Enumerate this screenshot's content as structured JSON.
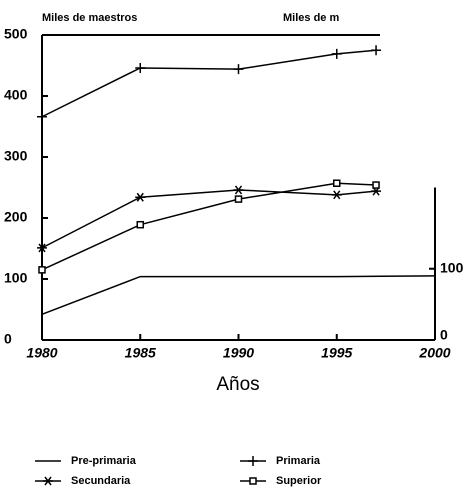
{
  "chart_data": {
    "type": "line",
    "title_left": "Miles de maestros",
    "title_right": "Miles de m",
    "xlabel": "Años",
    "xlim": [
      1980,
      2000
    ],
    "xticks": [
      1980,
      1985,
      1990,
      1995,
      2000
    ],
    "ylim": [
      0,
      500
    ],
    "yticks": [
      0,
      100,
      200,
      300,
      400,
      500
    ],
    "y2lim": [
      0,
      214
    ],
    "y2ticks": [
      0,
      100
    ],
    "color": "#000000",
    "series": [
      {
        "name": "Pre-primaria",
        "marker": "none",
        "axis": "y2",
        "x": [
          1980,
          1985,
          1990,
          1995,
          2000
        ],
        "values": [
          36,
          89,
          89,
          89,
          90
        ]
      },
      {
        "name": "Primaria",
        "marker": "plus",
        "x": [
          1980,
          1985,
          1990,
          1995,
          1997
        ],
        "values": [
          366,
          446,
          444,
          469,
          475
        ]
      },
      {
        "name": "Secundaria",
        "marker": "star",
        "x": [
          1980,
          1985,
          1990,
          1995,
          1997
        ],
        "values": [
          151,
          234,
          246,
          238,
          244
        ]
      },
      {
        "name": "Superior",
        "marker": "square",
        "x": [
          1980,
          1985,
          1990,
          1995,
          1997
        ],
        "values": [
          115,
          189,
          231,
          257,
          254
        ]
      }
    ]
  }
}
